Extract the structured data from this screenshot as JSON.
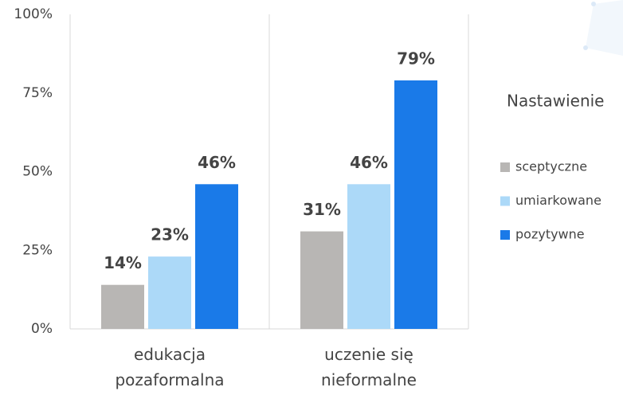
{
  "chart_data": {
    "type": "bar",
    "categories": [
      "edukacja pozaformalna",
      "uczenie się nieformalne"
    ],
    "series": [
      {
        "name": "sceptyczne",
        "color": "#b8b6b4",
        "values": [
          14,
          31
        ],
        "value_labels": [
          "14%",
          "31%"
        ]
      },
      {
        "name": "umiarkowane",
        "color": "#acd9f8",
        "values": [
          23,
          46
        ],
        "value_labels": [
          "23%",
          "46%"
        ]
      },
      {
        "name": "pozytywne",
        "color": "#1a7ae8",
        "values": [
          46,
          79
        ],
        "value_labels": [
          "46%",
          "79%"
        ]
      }
    ],
    "ylim": [
      0,
      100
    ],
    "yticks": [
      {
        "value": 0,
        "label": "0%"
      },
      {
        "value": 25,
        "label": "25%"
      },
      {
        "value": 50,
        "label": "50%"
      },
      {
        "value": 75,
        "label": "75%"
      },
      {
        "value": 100,
        "label": "100%"
      }
    ],
    "legend_title": "Nastawienie",
    "legend": "right"
  }
}
